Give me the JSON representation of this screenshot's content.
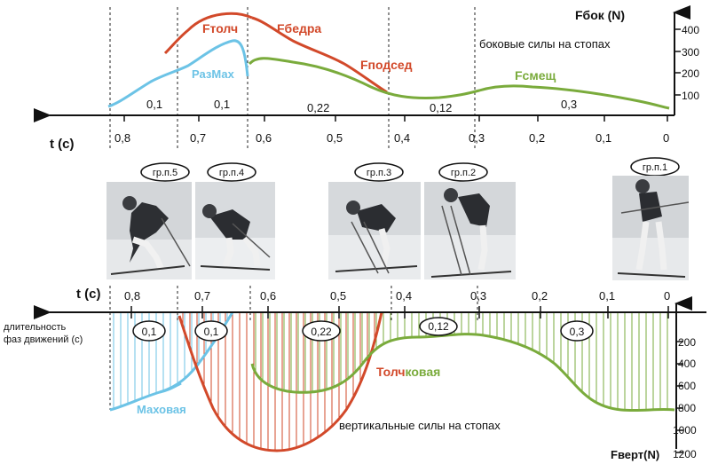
{
  "top_chart": {
    "axis_unit_label": "Fбок (N)",
    "time_label": "t (c)",
    "caption": "боковые силы на стопах",
    "y_ticks": [
      "400",
      "300",
      "200",
      "100"
    ],
    "x_ticks": [
      "0,8",
      "0,7",
      "0,6",
      "0,5",
      "0,4",
      "0,3",
      "0,2",
      "0,1",
      "0"
    ],
    "phase_durations": [
      "0,1",
      "0,1",
      "0,22",
      "0,12",
      "0,3"
    ],
    "series_labels": {
      "push": "Fтолч",
      "hip": "Fбедра",
      "squat": "Fподсед",
      "shift": "Fсмещ",
      "swing": "РазМах"
    }
  },
  "photos": {
    "labels": [
      "гр.п.5",
      "гр.п.4",
      "гр.п.3",
      "гр.п.2",
      "гр.п.1"
    ]
  },
  "bottom_chart": {
    "time_label": "t (c)",
    "phase_axis_label_1": "длительность",
    "phase_axis_label_2": "фаз движений (с)",
    "x_ticks": [
      "0,8",
      "0,7",
      "0,6",
      "0,5",
      "0,4",
      "0,3",
      "0,2",
      "0,1",
      "0"
    ],
    "phase_durations": [
      "0,1",
      "0,1",
      "0,22",
      "0,12",
      "0,3"
    ],
    "y_ticks": [
      "200",
      "400",
      "600",
      "800",
      "1000",
      "1200"
    ],
    "axis_unit_label": "Fверт(N)",
    "caption": "вертикальные силы на стопах",
    "swing_label": "Маховая",
    "push_label_part1": "Толч",
    "push_label_part2": "ковая"
  },
  "colors": {
    "red": "#d2492a",
    "green": "#7aab3c",
    "blue": "#6cc3e6",
    "axis": "#111111"
  }
}
